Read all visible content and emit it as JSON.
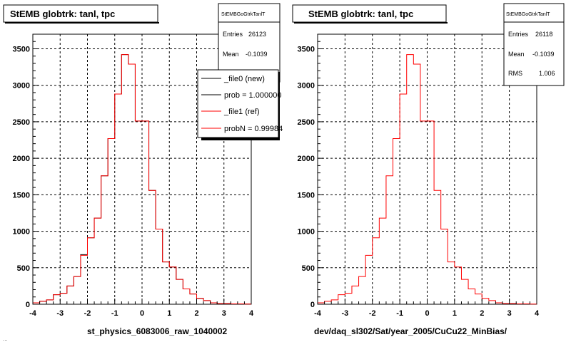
{
  "colors": {
    "new": "#000000",
    "ref": "#ff0000",
    "grid": "#000000",
    "frame": "#000000",
    "background": "#ffffff"
  },
  "footer_fragment": "...",
  "chart_data": [
    {
      "type": "bar",
      "title": "StEMB globtrk: tanl, tpc",
      "xlabel": "st_physics_6083006_raw_1040002",
      "ylabel": "",
      "xlim": [
        -4,
        4
      ],
      "ylim": [
        0,
        3700
      ],
      "x_ticks": [
        "-4",
        "-3",
        "-2",
        "-1",
        "0",
        "1",
        "2",
        "3",
        "4"
      ],
      "y_ticks": [
        "0",
        "500",
        "1000",
        "1500",
        "2000",
        "2500",
        "3000",
        "3500"
      ],
      "grid": true,
      "bin_edges_start": -4,
      "bin_width": 0.25,
      "series": [
        {
          "name": "_file0 (new)",
          "color": "#000000",
          "values": [
            20,
            40,
            60,
            130,
            150,
            250,
            380,
            680,
            910,
            1180,
            1760,
            2270,
            2880,
            3420,
            3290,
            2510,
            2510,
            1560,
            1030,
            580,
            510,
            340,
            210,
            140,
            80,
            50,
            20,
            10,
            10,
            5,
            5,
            2
          ]
        },
        {
          "name": "_file1 (ref)",
          "color": "#ff0000",
          "values": [
            20,
            40,
            60,
            130,
            150,
            250,
            380,
            670,
            910,
            1180,
            1760,
            2270,
            2880,
            3420,
            3290,
            2510,
            2510,
            1560,
            1030,
            580,
            510,
            340,
            210,
            140,
            80,
            50,
            20,
            10,
            10,
            5,
            5,
            2
          ]
        }
      ],
      "stats": {
        "name": "StEMBGoGtrkTanlT",
        "entries_label": "Entries",
        "entries": "26123",
        "mean_label": "Mean",
        "mean": "-0.1039"
      },
      "legend": {
        "placement": "top-right",
        "items": [
          "_file0 (new)",
          "prob = 1.000000",
          "_file1 (ref)",
          "probN = 0.99984"
        ]
      }
    },
    {
      "type": "bar",
      "title": "StEMB globtrk: tanl, tpc",
      "xlabel": "dev/daq_sl302/Sat/year_2005/CuCu22_MinBias/",
      "ylabel": "",
      "xlim": [
        -4,
        4
      ],
      "ylim": [
        0,
        3700
      ],
      "x_ticks": [
        "-4",
        "-3",
        "-2",
        "-1",
        "0",
        "1",
        "2",
        "3",
        "4"
      ],
      "y_ticks": [
        "0",
        "500",
        "1000",
        "1500",
        "2000",
        "2500",
        "3000",
        "3500"
      ],
      "grid": true,
      "bin_edges_start": -4,
      "bin_width": 0.25,
      "series": [
        {
          "name": "ref",
          "color": "#ff0000",
          "values": [
            20,
            40,
            60,
            130,
            150,
            250,
            380,
            670,
            910,
            1180,
            1760,
            2270,
            2880,
            3420,
            3290,
            2510,
            2510,
            1560,
            1030,
            580,
            510,
            340,
            210,
            140,
            80,
            50,
            20,
            10,
            10,
            5,
            5,
            2
          ]
        }
      ],
      "stats": {
        "name": "StEMBGoGtrkTanlT",
        "entries_label": "Entries",
        "entries": "26118",
        "mean_label": "Mean",
        "mean": "-0.1039",
        "rms_label": "RMS",
        "rms": "1.006"
      }
    }
  ]
}
